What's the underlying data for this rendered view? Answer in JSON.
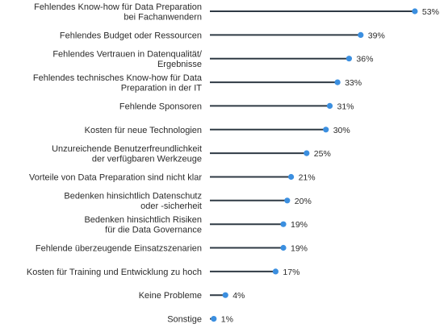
{
  "colors": {
    "line": "#2f3a44",
    "dot": "#3b8fe0",
    "text": "#2b2b2b"
  },
  "chart_data": {
    "type": "bar",
    "orientation": "horizontal",
    "style": "lollipop",
    "categories": [
      [
        "Fehlendes Know-how für Data Preparation",
        "bei Fachanwendern"
      ],
      [
        "Fehlendes Budget oder Ressourcen"
      ],
      [
        "Fehlendes Vertrauen in Datenqualität/",
        "Ergebnisse"
      ],
      [
        "Fehlendes technisches Know-how für Data",
        "Preparation in der IT"
      ],
      [
        "Fehlende Sponsoren"
      ],
      [
        "Kosten für neue Technologien"
      ],
      [
        "Unzureichende Benutzerfreundlichkeit",
        "der verfügbaren Werkzeuge"
      ],
      [
        "Vorteile von Data Preparation sind nicht klar"
      ],
      [
        "Bedenken hinsichtlich Datenschutz",
        "oder -sicherheit"
      ],
      [
        "Bedenken hinsichtlich Risiken",
        "für die Data Governance"
      ],
      [
        "Fehlende überzeugende Einsatzszenarien"
      ],
      [
        "Kosten für Training und Entwicklung zu hoch"
      ],
      [
        "Keine Probleme"
      ],
      [
        "Sonstige"
      ]
    ],
    "values": [
      53,
      39,
      36,
      33,
      31,
      30,
      25,
      21,
      20,
      19,
      19,
      17,
      4,
      1
    ],
    "value_labels": [
      "53%",
      "39%",
      "36%",
      "33%",
      "31%",
      "30%",
      "25%",
      "21%",
      "20%",
      "19%",
      "19%",
      "17%",
      "4%",
      "1%"
    ],
    "xlim": [
      0,
      53
    ],
    "grid": false,
    "legend": "none"
  }
}
